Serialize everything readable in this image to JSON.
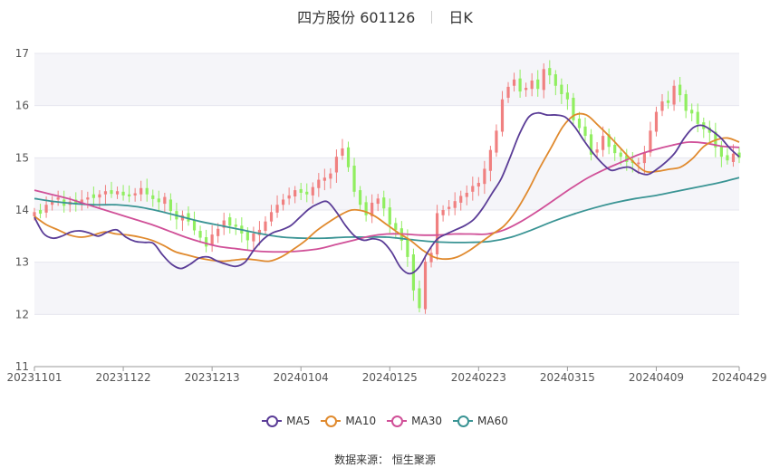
{
  "header": {
    "stock": "四方股份 601126",
    "period": "日K"
  },
  "source": "数据来源：  恒生聚源",
  "chart_data": {
    "type": "candlestick",
    "title": "四方股份 601126",
    "ylim": [
      11,
      17
    ],
    "yticks": [
      11,
      12,
      13,
      14,
      15,
      16,
      17
    ],
    "xticks": [
      "20231101",
      "20231122",
      "20231213",
      "20240104",
      "20240125",
      "20240223",
      "20240315",
      "20240409",
      "20240429"
    ],
    "xtick_index": [
      0,
      15,
      30,
      45,
      60,
      75,
      90,
      105,
      119
    ],
    "colors": {
      "up": "#f08080",
      "down": "#90ee60",
      "MA5": "#5b3d97",
      "MA10": "#e08a2e",
      "MA30": "#d05098",
      "MA60": "#3a9494"
    },
    "candles_close": [
      13.96,
      13.93,
      14.1,
      14.18,
      14.24,
      14.08,
      14.16,
      14.12,
      14.2,
      14.24,
      14.23,
      14.3,
      14.36,
      14.31,
      14.36,
      14.28,
      14.26,
      14.32,
      14.42,
      14.3,
      14.21,
      14.15,
      14.25,
      13.98,
      13.82,
      13.9,
      13.78,
      13.61,
      13.47,
      13.3,
      13.53,
      13.64,
      13.8,
      13.7,
      13.68,
      13.55,
      13.42,
      13.55,
      13.62,
      13.78,
      13.96,
      14.1,
      14.2,
      14.28,
      14.38,
      14.33,
      14.3,
      14.44,
      14.58,
      14.62,
      14.7,
      15.02,
      15.18,
      14.82,
      14.35,
      14.1,
      13.9,
      14.14,
      14.22,
      14.03,
      13.72,
      13.62,
      13.41,
      13.1,
      12.46,
      12.12,
      13.01,
      13.18,
      13.94,
      14.0,
      14.06,
      14.17,
      14.27,
      14.33,
      14.46,
      14.52,
      14.79,
      15.15,
      15.52,
      16.12,
      16.36,
      16.5,
      16.27,
      16.34,
      16.48,
      16.32,
      16.7,
      16.58,
      16.38,
      16.22,
      16.12,
      15.72,
      15.57,
      15.42,
      15.06,
      15.16,
      15.42,
      15.21,
      15.09,
      15.02,
      14.92,
      14.9,
      14.91,
      15.1,
      15.52,
      15.88,
      16.08,
      16.05,
      16.38,
      16.2,
      15.9,
      15.85,
      15.65,
      15.55,
      15.48,
      15.2,
      15.02,
      14.95,
      15.08,
      15.0
    ],
    "candles_open": [
      13.88,
      14.0,
      13.95,
      14.1,
      14.2,
      14.2,
      14.1,
      14.2,
      14.15,
      14.2,
      14.3,
      14.24,
      14.3,
      14.38,
      14.3,
      14.35,
      14.3,
      14.28,
      14.3,
      14.42,
      14.28,
      14.22,
      14.12,
      14.2,
      13.98,
      13.8,
      13.94,
      13.8,
      13.6,
      13.48,
      13.32,
      13.5,
      13.66,
      13.86,
      13.72,
      13.7,
      13.58,
      13.4,
      13.52,
      13.6,
      13.78,
      13.95,
      14.1,
      14.22,
      14.26,
      14.4,
      14.35,
      14.28,
      14.42,
      14.56,
      14.6,
      14.72,
      15.04,
      15.2,
      14.85,
      14.38,
      14.15,
      13.88,
      14.12,
      14.24,
      14.05,
      13.75,
      13.65,
      13.45,
      13.15,
      12.5,
      12.1,
      13.0,
      13.15,
      13.9,
      14.02,
      14.04,
      14.14,
      14.25,
      14.35,
      14.45,
      14.5,
      14.75,
      15.1,
      15.5,
      16.15,
      16.38,
      16.52,
      16.3,
      16.32,
      16.5,
      16.3,
      16.72,
      16.6,
      16.4,
      16.25,
      16.15,
      15.75,
      15.6,
      15.45,
      15.1,
      15.15,
      15.45,
      15.25,
      15.1,
      15.05,
      14.95,
      14.88,
      14.9,
      15.1,
      15.5,
      15.9,
      16.1,
      16.02,
      16.4,
      16.22,
      15.92,
      15.88,
      15.68,
      15.58,
      15.5,
      15.22,
      15.05,
      14.92,
      15.1
    ],
    "MA5": [
      13.86,
      13.55,
      13.46,
      13.5,
      13.58,
      13.6,
      13.56,
      13.5,
      13.58,
      13.62,
      13.48,
      13.4,
      13.38,
      13.36,
      13.14,
      12.96,
      12.88,
      12.96,
      13.08,
      13.1,
      13.02,
      12.96,
      12.92,
      13.0,
      13.24,
      13.44,
      13.56,
      13.62,
      13.7,
      13.86,
      14.02,
      14.12,
      14.16,
      13.96,
      13.7,
      13.5,
      13.42,
      13.45,
      13.4,
      13.2,
      12.9,
      12.78,
      12.9,
      13.2,
      13.44,
      13.54,
      13.62,
      13.7,
      13.82,
      14.04,
      14.32,
      14.6,
      15.02,
      15.46,
      15.78,
      15.86,
      15.82,
      15.82,
      15.78,
      15.6,
      15.34,
      15.1,
      14.9,
      14.76,
      14.8,
      14.82,
      14.72,
      14.68,
      14.78,
      14.92,
      15.1,
      15.38,
      15.58,
      15.62,
      15.52,
      15.38,
      15.18,
      15.02
    ],
    "MA10": [
      13.88,
      13.72,
      13.62,
      13.52,
      13.48,
      13.52,
      13.58,
      13.54,
      13.52,
      13.48,
      13.42,
      13.32,
      13.2,
      13.14,
      13.08,
      13.04,
      13.02,
      13.04,
      13.06,
      13.04,
      13.02,
      13.1,
      13.24,
      13.4,
      13.6,
      13.76,
      13.9,
      14.0,
      13.98,
      13.88,
      13.72,
      13.56,
      13.42,
      13.24,
      13.1,
      13.06,
      13.1,
      13.22,
      13.38,
      13.54,
      13.7,
      13.98,
      14.36,
      14.8,
      15.2,
      15.6,
      15.82,
      15.82,
      15.62,
      15.4,
      15.16,
      14.92,
      14.74,
      14.74,
      14.78,
      14.82,
      14.98,
      15.22,
      15.34,
      15.38,
      15.3
    ],
    "MA30": [
      14.38,
      14.3,
      14.22,
      14.12,
      14.02,
      13.92,
      13.82,
      13.72,
      13.6,
      13.48,
      13.38,
      13.3,
      13.26,
      13.22,
      13.2,
      13.2,
      13.22,
      13.26,
      13.34,
      13.42,
      13.5,
      13.54,
      13.54,
      13.52,
      13.52,
      13.54,
      13.54,
      13.54,
      13.62,
      13.78,
      13.98,
      14.2,
      14.42,
      14.62,
      14.78,
      14.92,
      15.06,
      15.16,
      15.24,
      15.3,
      15.28,
      15.22,
      15.2
    ],
    "MA60": [
      14.22,
      14.16,
      14.12,
      14.1,
      14.1,
      14.06,
      13.98,
      13.88,
      13.78,
      13.7,
      13.62,
      13.54,
      13.48,
      13.46,
      13.46,
      13.48,
      13.48,
      13.48,
      13.44,
      13.4,
      13.38,
      13.38,
      13.4,
      13.48,
      13.62,
      13.78,
      13.92,
      14.04,
      14.14,
      14.22,
      14.28,
      14.36,
      14.44,
      14.52,
      14.62
    ]
  },
  "legend": [
    {
      "label": "MA5",
      "color": "#5b3d97"
    },
    {
      "label": "MA10",
      "color": "#e08a2e"
    },
    {
      "label": "MA30",
      "color": "#d05098"
    },
    {
      "label": "MA60",
      "color": "#3a9494"
    }
  ]
}
